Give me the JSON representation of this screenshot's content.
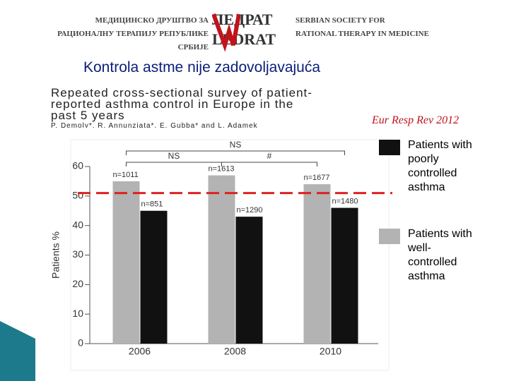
{
  "header": {
    "left_lines": [
      "МЕДИЦИНСКО ДРУШТВО ЗА",
      "РАЦИОНАЛНУ ТЕРАПИЈУ РЕПУБЛИКЕ СРБИЈЕ"
    ],
    "logo_lines": [
      "ЛЕДРАТ",
      "LEDRAT"
    ],
    "right_lines": [
      "SERBIAN SOCIETY FOR",
      "RATIONAL THERAPY IN MEDICINE"
    ]
  },
  "slide_title": "Kontrola astme nije zadovoljavajuća",
  "paper": {
    "title_lines": [
      "Repeated cross-sectional survey of patient-",
      "reported asthma control in Europe in the",
      "past 5 years"
    ],
    "authors": "P. Demoly*, R. Annunziata*, E. Gubba* and L. Adamek",
    "citation": "Eur Resp Rev 2012"
  },
  "chart_data": {
    "type": "bar",
    "y_label": "Patients %",
    "categories": [
      "2006",
      "2008",
      "2010"
    ],
    "series": [
      {
        "name": "Patients with well-controlled asthma",
        "color": "#b3b3b3",
        "values": [
          55,
          57,
          54
        ],
        "n_labels": [
          "n=1011",
          "n=1613",
          "n=1677"
        ]
      },
      {
        "name": "Patients with poorly controlled asthma",
        "color": "#111111",
        "values": [
          45,
          43,
          46
        ],
        "n_labels": [
          "n=851",
          "n=1290",
          "n=1480"
        ]
      }
    ],
    "ylim": [
      0,
      60
    ],
    "yticks": [
      0,
      10,
      20,
      30,
      40,
      50,
      60
    ],
    "grid": false,
    "reference_line": {
      "value": 51,
      "color": "#e02020"
    },
    "significance": [
      {
        "from": 0,
        "to": 2,
        "label": "NS"
      },
      {
        "from": 0,
        "to": 1,
        "label": "NS"
      },
      {
        "from": 1,
        "to": 2,
        "label": "#"
      }
    ]
  }
}
